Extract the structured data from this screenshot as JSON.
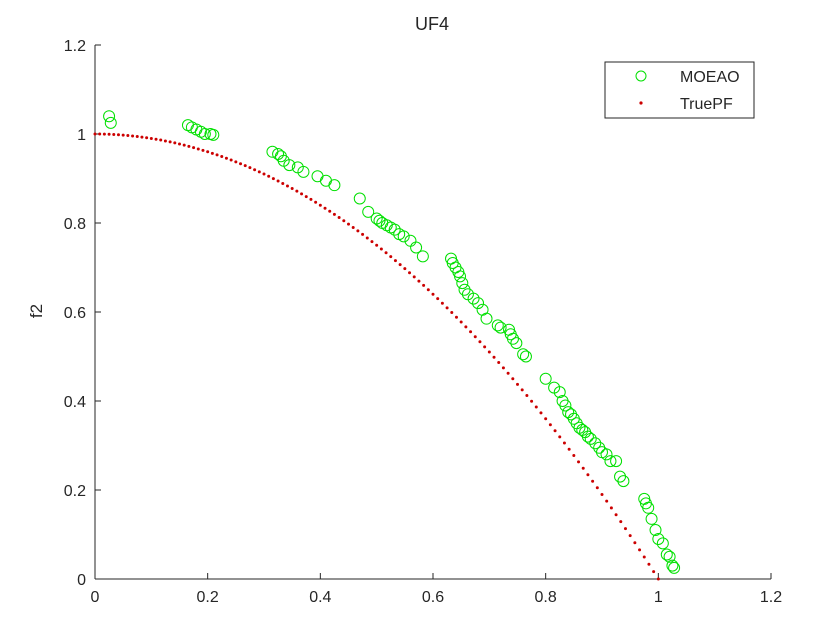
{
  "chart_data": {
    "type": "scatter",
    "title": "UF4",
    "xlabel": "",
    "ylabel": "f2",
    "xlim": [
      0,
      1.2
    ],
    "ylim": [
      0,
      1.2
    ],
    "xticks": [
      "0",
      "0.2",
      "0.4",
      "0.6",
      "0.8",
      "1",
      "1.2"
    ],
    "yticks": [
      "0",
      "0.2",
      "0.4",
      "0.6",
      "0.8",
      "1",
      "1.2"
    ],
    "grid": false,
    "legend_position": "top-right",
    "series": [
      {
        "name": "MOEAO",
        "marker": "circle-open",
        "color": "#00e000",
        "points": [
          [
            0.025,
            1.04
          ],
          [
            0.028,
            1.025
          ],
          [
            0.165,
            1.02
          ],
          [
            0.172,
            1.015
          ],
          [
            0.18,
            1.01
          ],
          [
            0.188,
            1.005
          ],
          [
            0.195,
            1.0
          ],
          [
            0.205,
            1.0
          ],
          [
            0.21,
            0.998
          ],
          [
            0.315,
            0.96
          ],
          [
            0.325,
            0.955
          ],
          [
            0.33,
            0.95
          ],
          [
            0.335,
            0.94
          ],
          [
            0.345,
            0.93
          ],
          [
            0.36,
            0.925
          ],
          [
            0.37,
            0.915
          ],
          [
            0.395,
            0.905
          ],
          [
            0.41,
            0.895
          ],
          [
            0.425,
            0.885
          ],
          [
            0.47,
            0.855
          ],
          [
            0.485,
            0.825
          ],
          [
            0.5,
            0.81
          ],
          [
            0.505,
            0.805
          ],
          [
            0.51,
            0.8
          ],
          [
            0.518,
            0.795
          ],
          [
            0.525,
            0.79
          ],
          [
            0.532,
            0.785
          ],
          [
            0.54,
            0.775
          ],
          [
            0.548,
            0.77
          ],
          [
            0.56,
            0.76
          ],
          [
            0.57,
            0.745
          ],
          [
            0.582,
            0.725
          ],
          [
            0.632,
            0.72
          ],
          [
            0.635,
            0.71
          ],
          [
            0.64,
            0.7
          ],
          [
            0.645,
            0.69
          ],
          [
            0.648,
            0.68
          ],
          [
            0.652,
            0.665
          ],
          [
            0.656,
            0.65
          ],
          [
            0.662,
            0.64
          ],
          [
            0.672,
            0.63
          ],
          [
            0.68,
            0.62
          ],
          [
            0.688,
            0.605
          ],
          [
            0.695,
            0.585
          ],
          [
            0.715,
            0.57
          ],
          [
            0.72,
            0.565
          ],
          [
            0.735,
            0.56
          ],
          [
            0.738,
            0.55
          ],
          [
            0.742,
            0.54
          ],
          [
            0.748,
            0.53
          ],
          [
            0.76,
            0.505
          ],
          [
            0.765,
            0.5
          ],
          [
            0.8,
            0.45
          ],
          [
            0.815,
            0.43
          ],
          [
            0.825,
            0.42
          ],
          [
            0.83,
            0.4
          ],
          [
            0.835,
            0.39
          ],
          [
            0.84,
            0.375
          ],
          [
            0.845,
            0.37
          ],
          [
            0.85,
            0.36
          ],
          [
            0.855,
            0.35
          ],
          [
            0.86,
            0.34
          ],
          [
            0.865,
            0.335
          ],
          [
            0.87,
            0.33
          ],
          [
            0.875,
            0.32
          ],
          [
            0.88,
            0.315
          ],
          [
            0.888,
            0.305
          ],
          [
            0.895,
            0.295
          ],
          [
            0.9,
            0.285
          ],
          [
            0.908,
            0.28
          ],
          [
            0.915,
            0.265
          ],
          [
            0.925,
            0.265
          ],
          [
            0.932,
            0.23
          ],
          [
            0.938,
            0.22
          ],
          [
            0.975,
            0.18
          ],
          [
            0.978,
            0.17
          ],
          [
            0.982,
            0.16
          ],
          [
            0.988,
            0.135
          ],
          [
            0.995,
            0.11
          ],
          [
            1.0,
            0.09
          ],
          [
            1.008,
            0.08
          ],
          [
            1.015,
            0.055
          ],
          [
            1.02,
            0.05
          ],
          [
            1.025,
            0.03
          ],
          [
            1.028,
            0.025
          ]
        ]
      },
      {
        "name": "TruePF",
        "marker": "dot",
        "color": "#cc0000",
        "function": "f2 = 1 - f1^2",
        "n_points": 120,
        "x_range": [
          0,
          1
        ]
      }
    ]
  }
}
